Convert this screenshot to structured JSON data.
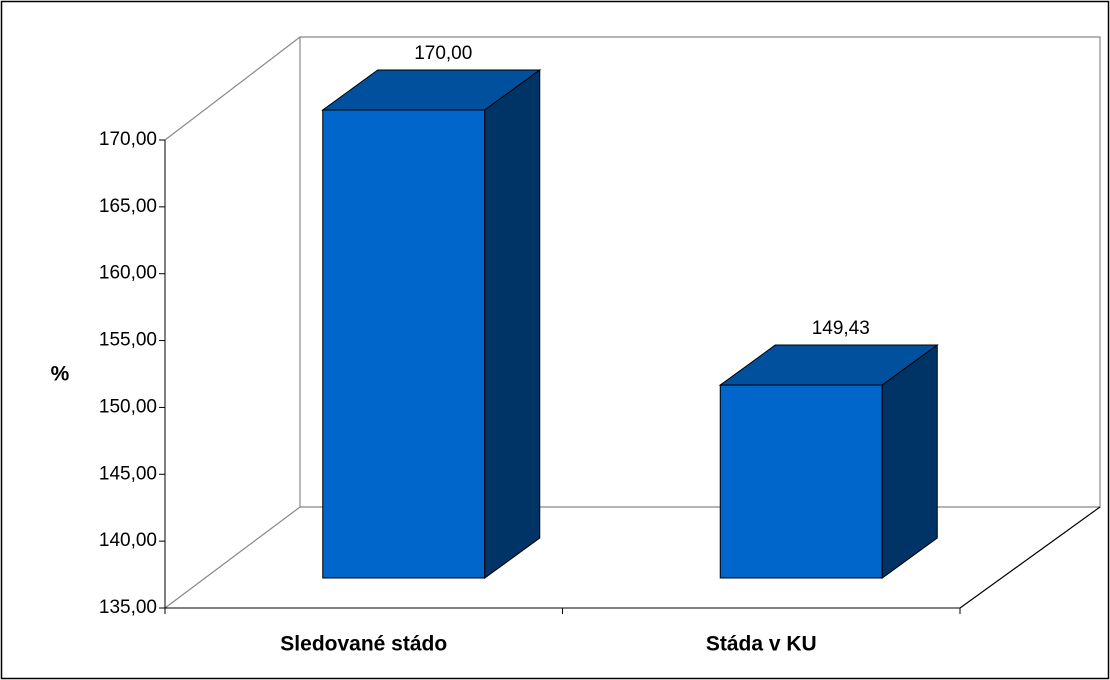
{
  "chart_data": {
    "type": "bar3d",
    "y_label": "%",
    "categories": [
      "Sledované stádo",
      "Stáda v KU"
    ],
    "values": [
      170,
      149.43
    ],
    "value_labels": [
      "170,00",
      "149,43"
    ],
    "colors": {
      "front": "#0066cc",
      "top": "#00509e",
      "side": "#003366"
    },
    "ylim": [
      135,
      170
    ],
    "yticks": [
      {
        "value": 135,
        "label": "135,00"
      },
      {
        "value": 140,
        "label": "140,00"
      },
      {
        "value": 145,
        "label": "145,00"
      },
      {
        "value": 150,
        "label": "150,00"
      },
      {
        "value": 155,
        "label": "155,00"
      },
      {
        "value": 160,
        "label": "160,00"
      },
      {
        "value": 165,
        "label": "165,00"
      },
      {
        "value": 170,
        "label": "170,00"
      }
    ]
  }
}
